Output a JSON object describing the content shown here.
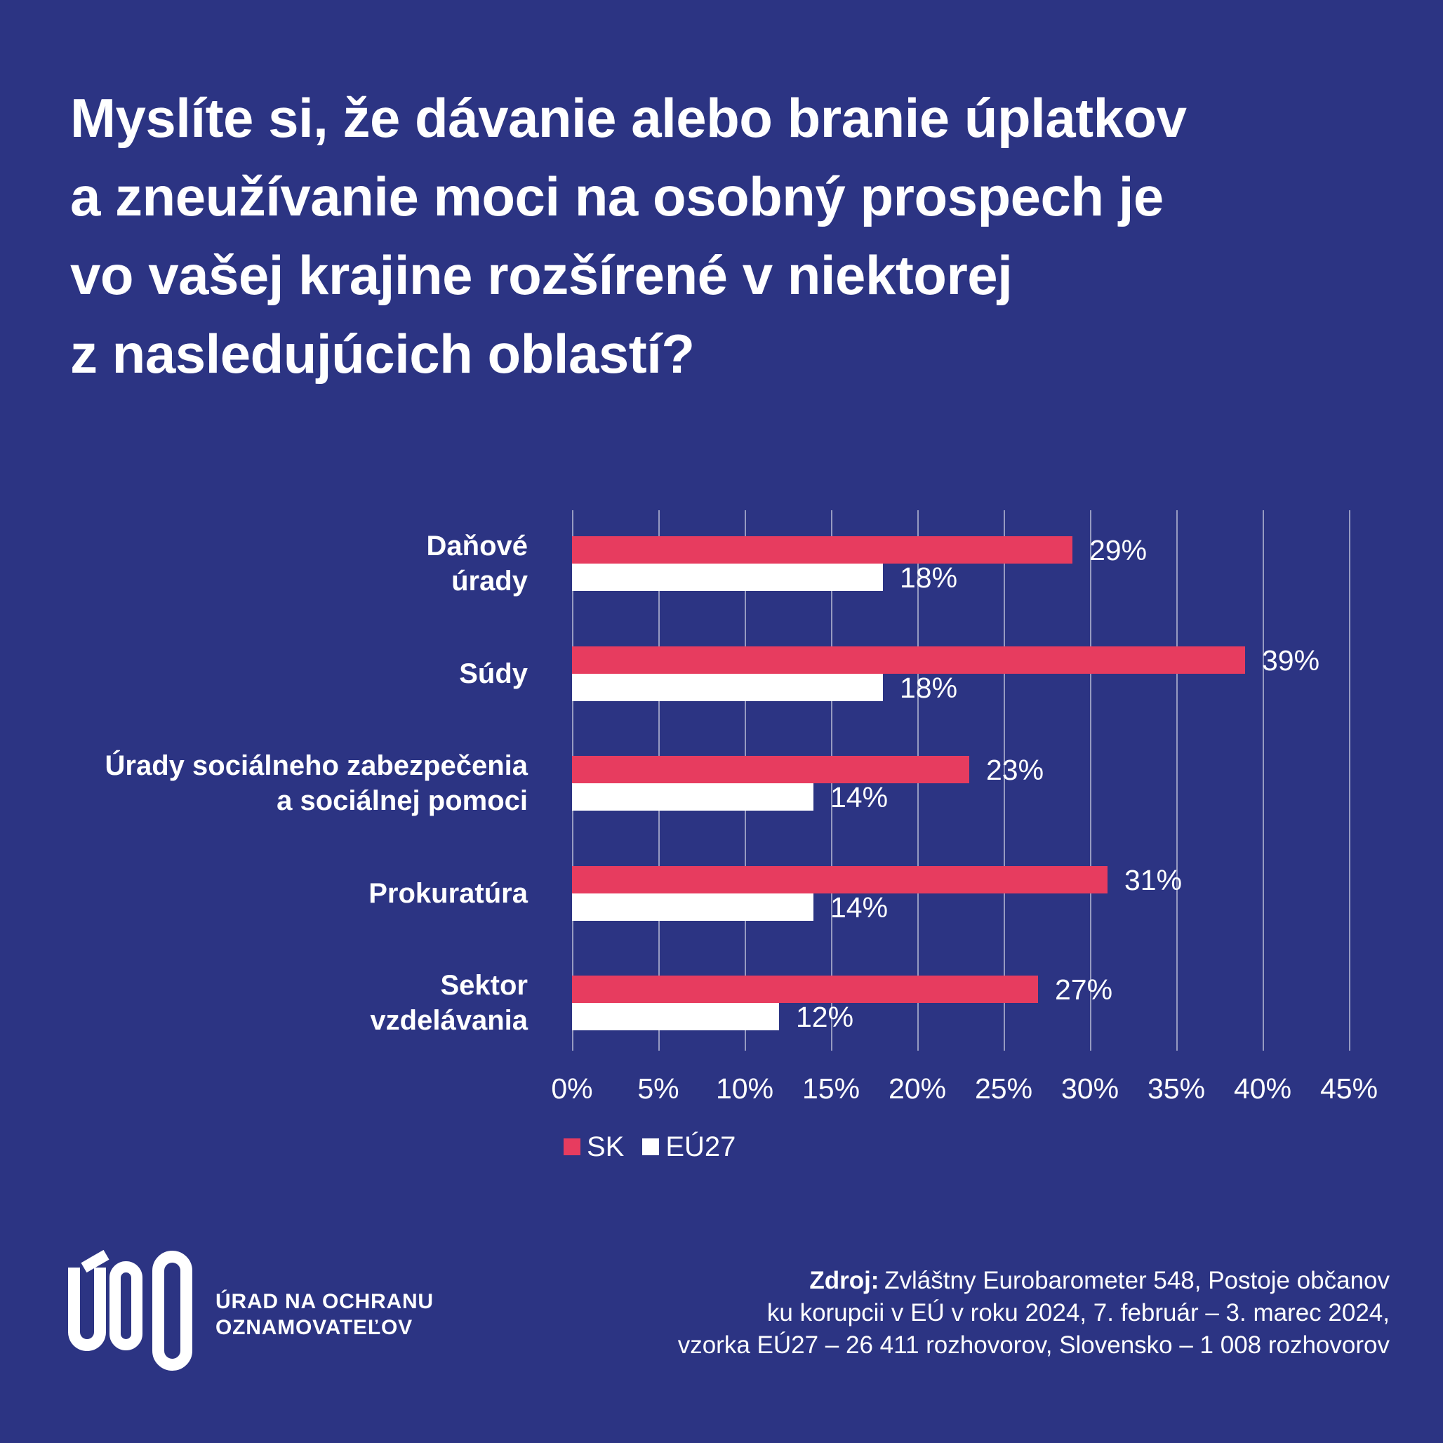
{
  "page": {
    "background_color": "#2C3483",
    "accent_red": "#E73C5F",
    "text_color": "#FFFFFF"
  },
  "title": {
    "lines": [
      "Myslíte si, že dávanie alebo branie úplatkov",
      "a zneužívanie moci na osobný prospech je",
      "vo vašej krajine rozšírené v niektorej",
      "z nasledujúcich oblastí?"
    ]
  },
  "chart_data": {
    "type": "bar",
    "orientation": "horizontal",
    "categories": [
      "Daňové úrady",
      "Súdy",
      "Úrady sociálneho zabezpečenia a sociálnej pomoci",
      "Prokuratúra",
      "Sektor vzdelávania"
    ],
    "category_label_lines": [
      [
        "Daňové",
        "úrady"
      ],
      [
        "Súdy"
      ],
      [
        "Úrady sociálneho zabezpečenia",
        "a sociálnej pomoci"
      ],
      [
        "Prokuratúra"
      ],
      [
        "Sektor",
        "vzdelávania"
      ]
    ],
    "series": [
      {
        "name": "SK",
        "color": "#E73C5F",
        "values": [
          29,
          39,
          23,
          31,
          27
        ]
      },
      {
        "name": "EÚ27",
        "color": "#FFFFFF",
        "values": [
          18,
          18,
          14,
          14,
          12
        ]
      }
    ],
    "data_labels": [
      [
        "29%",
        "18%"
      ],
      [
        "39%",
        "18%"
      ],
      [
        "23%",
        "14%"
      ],
      [
        "31%",
        "14%"
      ],
      [
        "27%",
        "12%"
      ]
    ],
    "value_suffix": "%",
    "xlim": [
      0,
      45
    ],
    "x_ticks": [
      "0%",
      "5%",
      "10%",
      "15%",
      "20%",
      "25%",
      "30%",
      "35%",
      "40%",
      "45%"
    ],
    "grid": true,
    "legend_position": "below-axis-left"
  },
  "legend": {
    "items": [
      {
        "label": "SK",
        "color": "#E73C5F"
      },
      {
        "label": "EÚ27",
        "color": "#FFFFFF"
      }
    ]
  },
  "logo": {
    "monogram": "ÚOO",
    "text_lines": [
      "ÚRAD NA OCHRANU",
      "OZNAMOVATEĽOV"
    ]
  },
  "source": {
    "label": "Zdroj:",
    "line1": "Zvláštny Eurobarometer 548, Postoje občanov",
    "line2": "ku korupcii v EÚ v roku 2024, 7. február – 3. marec 2024,",
    "line3": "vzorka EÚ27 – 26 411 rozhovorov, Slovensko – 1 008 rozhovorov"
  }
}
